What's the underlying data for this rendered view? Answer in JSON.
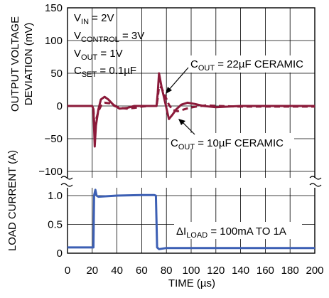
{
  "chart_data": {
    "type": "line",
    "x_axis": {
      "label": "TIME (µs)",
      "range": [
        0,
        200
      ],
      "ticks": [
        "0",
        "20",
        "40",
        "60",
        "80",
        "100",
        "120",
        "140",
        "160",
        "180",
        "200"
      ]
    },
    "y_axis_top": {
      "label_lines": [
        "OUTPUT VOLTAGE",
        "DEVIATION (mV)"
      ],
      "range": [
        -100,
        150
      ],
      "ticks": [
        "150",
        "100",
        "50",
        "0",
        "−50",
        "−100"
      ]
    },
    "y_axis_bottom": {
      "label": "LOAD CURRENT (A)",
      "range": [
        0,
        1.25
      ],
      "ticks": [
        "1.0",
        "0.5",
        "0"
      ]
    },
    "grid": true,
    "conditions": {
      "vin": {
        "base": "V",
        "sub": "IN",
        "rest": " = 2V"
      },
      "vcontrol": {
        "base": "V",
        "sub": "CONTROL",
        "rest": " = 3V"
      },
      "vout": {
        "base": "V",
        "sub": "OUT",
        "rest": " = 1V"
      },
      "cset": {
        "base": "C",
        "sub": "SET",
        "rest": " = 0.1µF"
      }
    },
    "annotations": {
      "cout22": {
        "base": "C",
        "sub": "OUT",
        "rest": " = 22µF CERAMIC"
      },
      "cout10": {
        "base": "C",
        "sub": "OUT",
        "rest": " = 10µF CERAMIC"
      },
      "dload": {
        "base": "ΔI",
        "sub": "LOAD",
        "rest": " = 100mA TO 1A"
      }
    },
    "colors": {
      "voltage": "#8b1a3a",
      "current": "#3c5fb4",
      "grid": "#000000"
    },
    "series": [
      {
        "panel": "top",
        "style": "solid",
        "x": [
          0,
          20,
          21,
          22,
          23,
          25,
          27,
          30,
          33,
          37,
          42,
          48,
          54,
          60,
          66,
          72,
          73,
          74,
          76,
          79,
          82,
          85,
          88,
          92,
          97,
          103,
          110,
          120,
          140,
          170,
          200
        ],
        "values": [
          0,
          0,
          -5,
          -62,
          -30,
          -5,
          10,
          14,
          10,
          2,
          -4,
          -3,
          0,
          0,
          0,
          0,
          20,
          50,
          30,
          5,
          -20,
          -13,
          -5,
          2,
          5,
          3,
          0,
          -2,
          0,
          0,
          0
        ]
      },
      {
        "panel": "top",
        "style": "dashed",
        "x": [
          0,
          20,
          21,
          22,
          23,
          25,
          27,
          30,
          34,
          38,
          43,
          48,
          54,
          60,
          66,
          72,
          73,
          74,
          76,
          79,
          82,
          85,
          89,
          93,
          98,
          104,
          112,
          122,
          140,
          170,
          200
        ],
        "values": [
          0,
          0,
          -5,
          -40,
          -22,
          -8,
          0,
          5,
          4,
          0,
          -3,
          -4,
          -3,
          -1,
          0,
          0,
          12,
          30,
          28,
          15,
          2,
          -6,
          -8,
          -6,
          -3,
          -1,
          1,
          0,
          -1,
          -1,
          -1
        ]
      },
      {
        "panel": "bottom",
        "style": "solid",
        "x": [
          0,
          21,
          21.5,
          22.5,
          23.5,
          25,
          40,
          60,
          70,
          71.5,
          72.5,
          74,
          80,
          100,
          200
        ],
        "values": [
          0.1,
          0.1,
          1.0,
          1.1,
          1.0,
          0.98,
          1.0,
          1.01,
          1.01,
          1.0,
          0.1,
          0.07,
          0.09,
          0.09,
          0.09
        ]
      }
    ]
  }
}
